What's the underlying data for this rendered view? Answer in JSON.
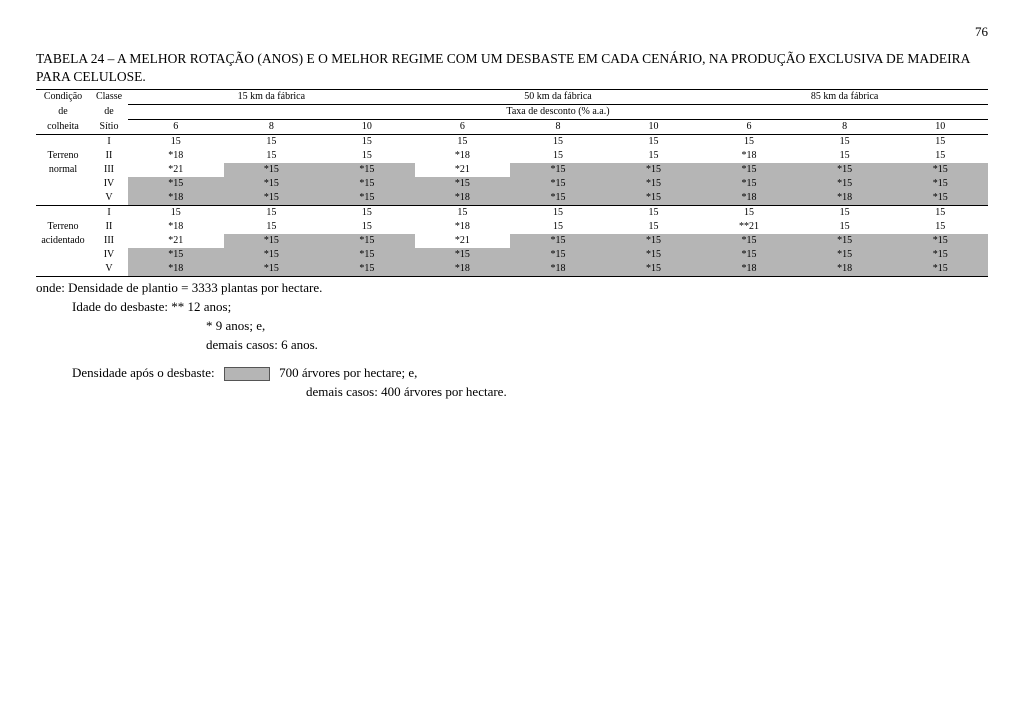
{
  "page_number": "76",
  "title": "TABELA 24 – A MELHOR ROTAÇÃO (ANOS) E O MELHOR REGIME COM UM DESBASTE EM CADA CENÁRIO, NA PRODUÇÃO EXCLUSIVA DE MADEIRA PARA CELULOSE.",
  "header": {
    "cond_line1": "Condição",
    "cond_line2": "de",
    "cond_line3": "colheita",
    "class_line1": "Classe",
    "class_line2": "de",
    "class_line3": "Sítio",
    "dist_15": "15 km da fábrica",
    "dist_50": "50 km da fábrica",
    "dist_85": "85 km da fábrica",
    "taxa": "Taxa de desconto (% a.a.)",
    "rates": [
      "6",
      "8",
      "10",
      "6",
      "8",
      "10",
      "6",
      "8",
      "10"
    ]
  },
  "row_groups": [
    {
      "label": "Terreno normal",
      "label_line1": "Terreno",
      "label_line2": "normal",
      "rows": [
        {
          "site": "I",
          "v": [
            "15",
            "15",
            "15",
            "15",
            "15",
            "15",
            "15",
            "15",
            "15"
          ],
          "s": [
            0,
            0,
            0,
            0,
            0,
            0,
            0,
            0,
            0
          ]
        },
        {
          "site": "II",
          "v": [
            "*18",
            "15",
            "15",
            "*18",
            "15",
            "15",
            "*18",
            "15",
            "15"
          ],
          "s": [
            0,
            0,
            0,
            0,
            0,
            0,
            0,
            0,
            0
          ]
        },
        {
          "site": "III",
          "v": [
            "*21",
            "*15",
            "*15",
            "*21",
            "*15",
            "*15",
            "*15",
            "*15",
            "*15"
          ],
          "s": [
            0,
            1,
            1,
            0,
            1,
            1,
            1,
            1,
            1
          ]
        },
        {
          "site": "IV",
          "v": [
            "*15",
            "*15",
            "*15",
            "*15",
            "*15",
            "*15",
            "*15",
            "*15",
            "*15"
          ],
          "s": [
            1,
            1,
            1,
            1,
            1,
            1,
            1,
            1,
            1
          ]
        },
        {
          "site": "V",
          "v": [
            "*18",
            "*15",
            "*15",
            "*18",
            "*15",
            "*15",
            "*18",
            "*18",
            "*15"
          ],
          "s": [
            1,
            1,
            1,
            1,
            1,
            1,
            1,
            1,
            1
          ]
        }
      ]
    },
    {
      "label": "Terreno acidentado",
      "label_line1": "Terreno",
      "label_line2": "acidentado",
      "rows": [
        {
          "site": "I",
          "v": [
            "15",
            "15",
            "15",
            "15",
            "15",
            "15",
            "15",
            "15",
            "15"
          ],
          "s": [
            0,
            0,
            0,
            0,
            0,
            0,
            0,
            0,
            0
          ]
        },
        {
          "site": "II",
          "v": [
            "*18",
            "15",
            "15",
            "*18",
            "15",
            "15",
            "**21",
            "15",
            "15"
          ],
          "s": [
            0,
            0,
            0,
            0,
            0,
            0,
            0,
            0,
            0
          ]
        },
        {
          "site": "III",
          "v": [
            "*21",
            "*15",
            "*15",
            "*21",
            "*15",
            "*15",
            "*15",
            "*15",
            "*15"
          ],
          "s": [
            0,
            1,
            1,
            0,
            1,
            1,
            1,
            1,
            1
          ]
        },
        {
          "site": "IV",
          "v": [
            "*15",
            "*15",
            "*15",
            "*15",
            "*15",
            "*15",
            "*15",
            "*15",
            "*15"
          ],
          "s": [
            1,
            1,
            1,
            1,
            1,
            1,
            1,
            1,
            1
          ]
        },
        {
          "site": "V",
          "v": [
            "*18",
            "*15",
            "*15",
            "*18",
            "*18",
            "*15",
            "*18",
            "*18",
            "*15"
          ],
          "s": [
            1,
            1,
            1,
            1,
            1,
            1,
            1,
            1,
            1
          ]
        }
      ]
    }
  ],
  "notes": {
    "onde": "onde: Densidade de plantio = 3333 plantas por hectare.",
    "idade": "Idade do desbaste: ** 12 anos;",
    "l3": "*  9 anos; e,",
    "l4": "demais casos:  6 anos.",
    "dens_label": "Densidade após o desbaste:",
    "dens_700": "700 árvores por hectare; e,",
    "dens_400": "demais casos: 400 árvores por hectare."
  }
}
